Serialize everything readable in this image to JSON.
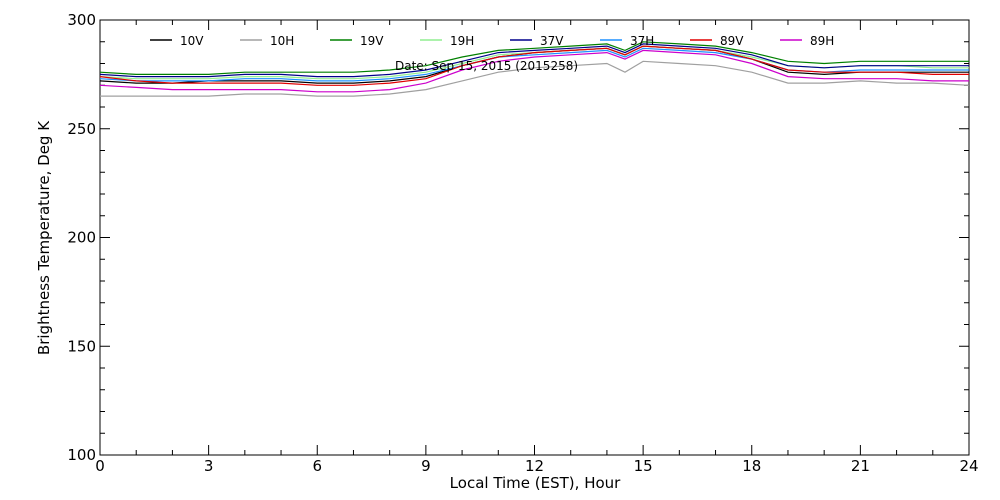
{
  "chart_data": {
    "type": "line",
    "xlabel": "Local Time (EST), Hour",
    "ylabel": "Brightness Temperature, Deg K",
    "annotation": "Date: Sep 15, 2015 (2015258)",
    "xlim": [
      0,
      24
    ],
    "ylim": [
      100,
      300
    ],
    "x_ticks": [
      0,
      3,
      6,
      9,
      12,
      15,
      18,
      21,
      24
    ],
    "y_ticks": [
      100,
      150,
      200,
      250,
      300
    ],
    "grid": false,
    "legend_position": "top",
    "x": [
      0,
      1,
      2,
      3,
      4,
      5,
      6,
      7,
      8,
      9,
      10,
      11,
      12,
      13,
      14,
      14.5,
      15,
      16,
      17,
      18,
      19,
      20,
      21,
      22,
      23,
      24
    ],
    "series": [
      {
        "name": "10V",
        "color": "#000000",
        "values": [
          272,
          271,
          271,
          272,
          272,
          272,
          271,
          271,
          272,
          274,
          279,
          283,
          285,
          286,
          287,
          284,
          288,
          287,
          286,
          282,
          276,
          275,
          276,
          276,
          276,
          276
        ]
      },
      {
        "name": "10H",
        "color": "#a0a0a0",
        "values": [
          265,
          265,
          265,
          265,
          266,
          266,
          265,
          265,
          266,
          268,
          272,
          276,
          278,
          279,
          280,
          276,
          281,
          280,
          279,
          276,
          271,
          271,
          272,
          271,
          271,
          270
        ]
      },
      {
        "name": "19V",
        "color": "#008000",
        "values": [
          276,
          275,
          275,
          275,
          276,
          276,
          276,
          276,
          277,
          279,
          283,
          286,
          287,
          288,
          289,
          286,
          290,
          289,
          288,
          285,
          281,
          280,
          281,
          281,
          281,
          281
        ]
      },
      {
        "name": "19H",
        "color": "#90ee90",
        "values": [
          274,
          273,
          273,
          273,
          274,
          274,
          273,
          273,
          274,
          276,
          280,
          284,
          285,
          286,
          287,
          284,
          288,
          287,
          286,
          283,
          279,
          278,
          279,
          279,
          278,
          278
        ]
      },
      {
        "name": "37V",
        "color": "#00008b",
        "values": [
          275,
          274,
          274,
          274,
          275,
          275,
          274,
          274,
          275,
          277,
          281,
          285,
          286,
          287,
          288,
          285,
          289,
          288,
          287,
          284,
          279,
          278,
          279,
          279,
          279,
          279
        ]
      },
      {
        "name": "37H",
        "color": "#1e90ff",
        "values": [
          273,
          272,
          272,
          272,
          273,
          273,
          272,
          272,
          273,
          275,
          279,
          283,
          284,
          285,
          286,
          283,
          287,
          286,
          285,
          282,
          277,
          276,
          277,
          277,
          277,
          277
        ]
      },
      {
        "name": "89V",
        "color": "#e00000",
        "values": [
          274,
          272,
          271,
          271,
          271,
          271,
          270,
          270,
          271,
          273,
          279,
          283,
          285,
          286,
          287,
          284,
          288,
          287,
          286,
          282,
          277,
          276,
          276,
          276,
          275,
          275
        ]
      },
      {
        "name": "89H",
        "color": "#cc00cc",
        "values": [
          270,
          269,
          268,
          268,
          268,
          268,
          267,
          267,
          268,
          271,
          277,
          281,
          283,
          284,
          285,
          282,
          286,
          285,
          284,
          280,
          274,
          273,
          273,
          273,
          272,
          272
        ]
      }
    ]
  }
}
